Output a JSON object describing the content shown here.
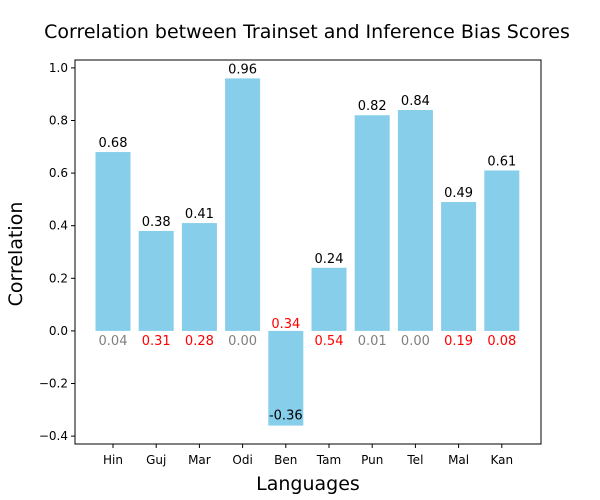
{
  "chart_data": {
    "type": "bar",
    "title": "Correlation between Trainset and Inference Bias Scores",
    "xlabel": "Languages",
    "ylabel": "Correlation",
    "categories": [
      "Hin",
      "Guj",
      "Mar",
      "Odi",
      "Ben",
      "Tam",
      "Pun",
      "Tel",
      "Mal",
      "Kan"
    ],
    "values": [
      0.68,
      0.38,
      0.41,
      0.96,
      -0.36,
      0.24,
      0.82,
      0.84,
      0.49,
      0.61
    ],
    "value_labels": [
      "0.68",
      "0.38",
      "0.41",
      "0.96",
      "-0.36",
      "0.24",
      "0.82",
      "0.84",
      "0.49",
      "0.61"
    ],
    "secondary_labels": [
      "0.04",
      "0.31",
      "0.28",
      "0.00",
      "0.34",
      "0.54",
      "0.01",
      "0.00",
      "0.19",
      "0.08"
    ],
    "secondary_label_colors": [
      "#808080",
      "#ff0000",
      "#ff0000",
      "#808080",
      "#ff0000",
      "#ff0000",
      "#808080",
      "#808080",
      "#ff0000",
      "#ff0000"
    ],
    "ylim": [
      -0.43,
      1.03
    ],
    "yticks": [
      -0.4,
      -0.2,
      0.0,
      0.2,
      0.4,
      0.6,
      0.8,
      1.0
    ],
    "ytick_labels": [
      "−0.4",
      "−0.2",
      "0.0",
      "0.2",
      "0.4",
      "0.6",
      "0.8",
      "1.0"
    ],
    "bar_color": "#87ceeb",
    "grid": false,
    "legend": false
  }
}
